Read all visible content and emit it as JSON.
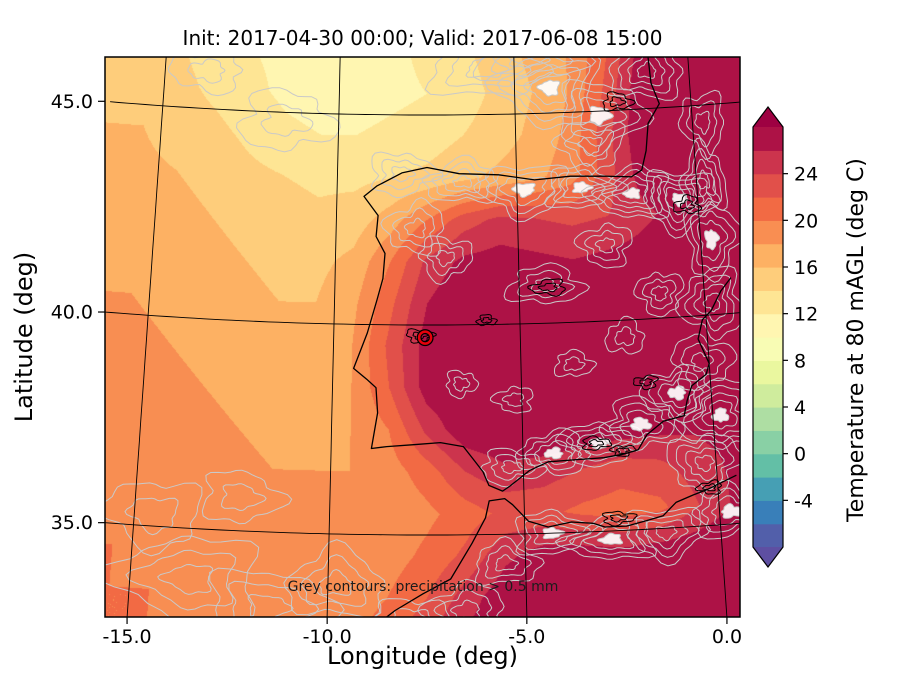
{
  "figure": {
    "title": "Init: 2017-04-30 00:00; Valid: 2017-06-08 15:00",
    "xlabel": "Longitude (deg)",
    "ylabel": "Latitude (deg)",
    "annotation": "Grey contours: precipitation > 0.5 mm",
    "colorbar_label": "Temperature at 80 mAGL (deg C)"
  },
  "chart_data": {
    "type": "heatmap",
    "title": "Init: 2017-04-30 00:00; Valid: 2017-06-08 15:00",
    "xlabel": "Longitude (deg)",
    "ylabel": "Latitude (deg)",
    "xlim": [
      -15.6,
      0.35
    ],
    "ylim": [
      32.7,
      46.3
    ],
    "grid": true,
    "xticks": {
      "values": [
        -15,
        -10,
        -5,
        0
      ],
      "labels": [
        "-15.0",
        "-10.0",
        "-5.0",
        "0.0"
      ]
    },
    "yticks": {
      "values": [
        35,
        40,
        45
      ],
      "labels": [
        "35.0",
        "40.0",
        "45.0"
      ]
    },
    "graticule": {
      "meridians": [
        -15,
        -10,
        -5,
        0
      ],
      "parallels": [
        35,
        40,
        45
      ]
    },
    "colorbar": {
      "label": "Temperature at 80 mAGL (deg C)",
      "units": "deg C",
      "vmin": -8,
      "vmax": 28,
      "band_step": 2,
      "extend": "both",
      "ticks": [
        -4,
        0,
        4,
        8,
        12,
        16,
        20,
        24
      ],
      "tick_labels": [
        "-4",
        "0",
        "4",
        "8",
        "12",
        "16",
        "20",
        "24"
      ],
      "colormap": [
        [
          -8,
          "#5E4FA2"
        ],
        [
          -4.4,
          "#3288BD"
        ],
        [
          -0.8,
          "#66C2A5"
        ],
        [
          2.8,
          "#ABDDA4"
        ],
        [
          6.4,
          "#E6F598"
        ],
        [
          10,
          "#FFFFBF"
        ],
        [
          13.6,
          "#FEE08B"
        ],
        [
          17.2,
          "#FDAE61"
        ],
        [
          20.8,
          "#F46D43"
        ],
        [
          24.4,
          "#D53E4F"
        ],
        [
          28,
          "#9E0142"
        ]
      ]
    },
    "field": {
      "comment": "Estimated 80 mAGL temperature (deg C) on lon/lat grid read from the filled contours",
      "lons": [
        -15.5,
        -14.5,
        -13.5,
        -12.5,
        -11.5,
        -10.5,
        -9.5,
        -8.5,
        -7.5,
        -6.5,
        -5.5,
        -4.5,
        -3.5,
        -2.5,
        -1.5,
        -0.5,
        0.5
      ],
      "lats": [
        46.5,
        45.5,
        44.5,
        43.5,
        42.5,
        41.5,
        40.5,
        39.5,
        38.5,
        37.5,
        36.5,
        35.5,
        34.5,
        33.5,
        32.5
      ],
      "values": [
        [
          15,
          14,
          13,
          12,
          11.5,
          11,
          11,
          11.5,
          12.5,
          13.5,
          15,
          16.5,
          18,
          21,
          26,
          28,
          28
        ],
        [
          15,
          14.5,
          13.5,
          12.5,
          11.5,
          11,
          11,
          11.5,
          12,
          13,
          14.5,
          16,
          18,
          22,
          27,
          28,
          28
        ],
        [
          16,
          15,
          14.5,
          13.5,
          12.5,
          12,
          12,
          12.5,
          13,
          14,
          15,
          16.5,
          18.5,
          23,
          27.5,
          28,
          28
        ],
        [
          16.5,
          16,
          15.5,
          14.5,
          14,
          13.5,
          13.5,
          14,
          14.5,
          15.5,
          16.5,
          17.5,
          19,
          23,
          27,
          28,
          28
        ],
        [
          17,
          16.5,
          16,
          15.5,
          15,
          14.5,
          15,
          17,
          20,
          23,
          24.5,
          24,
          23.5,
          24,
          25.5,
          27,
          27.5
        ],
        [
          17.5,
          17,
          16.5,
          16,
          15.5,
          15.5,
          16.5,
          20,
          24.5,
          26.5,
          27,
          26.5,
          26,
          26.5,
          27,
          27.5,
          27.5
        ],
        [
          18,
          17.5,
          17,
          16.5,
          16,
          16,
          17.5,
          21.5,
          26,
          28,
          28,
          27.5,
          27,
          27.5,
          28,
          28,
          27.5
        ],
        [
          18.5,
          18,
          17.5,
          17,
          16.5,
          16.5,
          18,
          22.5,
          27,
          28,
          28,
          28,
          27.5,
          27.5,
          28,
          28,
          27.5
        ],
        [
          18.5,
          18.5,
          18,
          17.5,
          17,
          17,
          18,
          22,
          27,
          28,
          28,
          28,
          28,
          28,
          28,
          27.5,
          27
        ],
        [
          19,
          19,
          18.5,
          18,
          17.5,
          17.5,
          18,
          20,
          24.5,
          27.5,
          28,
          28,
          28,
          27.5,
          27,
          26.5,
          27
        ],
        [
          19.5,
          19,
          19,
          18.5,
          18,
          18,
          18,
          19,
          21,
          24,
          25.5,
          25,
          24,
          23,
          23.5,
          25,
          26.5
        ],
        [
          19.5,
          19.5,
          19,
          19,
          18.5,
          18.5,
          18,
          18.5,
          19.5,
          21,
          22.5,
          22.5,
          21.5,
          21,
          21.5,
          24,
          26.5
        ],
        [
          20,
          19.5,
          19.5,
          19,
          19,
          18.5,
          18.5,
          19,
          20.5,
          22.5,
          25.5,
          27,
          27,
          26.5,
          27,
          27.5,
          28
        ],
        [
          20,
          20,
          19.5,
          19.5,
          19,
          19,
          19,
          20,
          22,
          25,
          27.5,
          28,
          28,
          28,
          28,
          28,
          28
        ],
        [
          20,
          20,
          20,
          19.5,
          19.5,
          19,
          19.5,
          21,
          24,
          26.5,
          28,
          28,
          28,
          28,
          28,
          28,
          28
        ]
      ]
    },
    "coastlines": [
      [
        [
          -1.15,
          46.35
        ],
        [
          -1.1,
          45.6
        ],
        [
          -0.9,
          45.1
        ],
        [
          -1.25,
          44.65
        ],
        [
          -1.35,
          44.0
        ],
        [
          -1.5,
          43.55
        ],
        [
          -1.8,
          43.4
        ],
        [
          -2.6,
          43.45
        ],
        [
          -3.5,
          43.48
        ],
        [
          -4.5,
          43.42
        ],
        [
          -5.5,
          43.56
        ],
        [
          -6.6,
          43.6
        ],
        [
          -7.5,
          43.75
        ],
        [
          -8.2,
          43.62
        ],
        [
          -8.9,
          43.3
        ],
        [
          -9.25,
          43.05
        ],
        [
          -8.85,
          42.6
        ],
        [
          -8.9,
          42.1
        ],
        [
          -8.65,
          41.7
        ],
        [
          -8.7,
          41.1
        ],
        [
          -8.85,
          40.6
        ],
        [
          -9.1,
          39.8
        ],
        [
          -9.45,
          38.95
        ],
        [
          -9.1,
          38.7
        ],
        [
          -8.85,
          38.5
        ],
        [
          -8.8,
          37.9
        ],
        [
          -8.95,
          37.05
        ],
        [
          -8.55,
          37.1
        ],
        [
          -7.85,
          37.15
        ],
        [
          -7.15,
          37.2
        ],
        [
          -6.55,
          37.1
        ],
        [
          -6.3,
          36.8
        ],
        [
          -6.05,
          36.5
        ],
        [
          -5.9,
          36.17
        ],
        [
          -5.55,
          36.03
        ],
        [
          -5.35,
          36.15
        ],
        [
          -4.85,
          36.5
        ],
        [
          -4.35,
          36.7
        ],
        [
          -3.6,
          36.73
        ],
        [
          -2.9,
          36.75
        ],
        [
          -2.35,
          36.82
        ],
        [
          -2.0,
          36.9
        ],
        [
          -1.75,
          37.25
        ],
        [
          -1.3,
          37.55
        ],
        [
          -0.75,
          37.65
        ],
        [
          -0.65,
          38.0
        ],
        [
          -0.5,
          38.35
        ],
        [
          -0.1,
          38.6
        ],
        [
          0.0,
          38.85
        ],
        [
          -0.25,
          39.45
        ],
        [
          -0.1,
          39.9
        ],
        [
          0.15,
          40.1
        ],
        [
          0.45,
          40.55
        ],
        [
          0.75,
          40.85
        ]
      ],
      [
        [
          -9.5,
          32.4
        ],
        [
          -8.9,
          32.75
        ],
        [
          -8.3,
          33.2
        ],
        [
          -7.6,
          33.6
        ],
        [
          -6.9,
          33.95
        ],
        [
          -6.35,
          34.8
        ],
        [
          -6.0,
          35.4
        ],
        [
          -5.9,
          35.8
        ],
        [
          -5.5,
          35.85
        ],
        [
          -5.3,
          35.7
        ],
        [
          -4.9,
          35.3
        ],
        [
          -4.4,
          35.15
        ],
        [
          -3.8,
          35.25
        ],
        [
          -3.25,
          35.2
        ],
        [
          -2.95,
          35.1
        ],
        [
          -2.4,
          35.1
        ],
        [
          -1.9,
          35.2
        ],
        [
          -1.45,
          35.3
        ],
        [
          -1.1,
          35.6
        ],
        [
          -0.65,
          35.75
        ],
        [
          -0.3,
          35.85
        ],
        [
          0.1,
          36.0
        ],
        [
          0.5,
          36.15
        ]
      ]
    ],
    "precip_contours": {
      "color": "#c9c9c9",
      "threshold": "> 0.5 mm",
      "clusters": [
        [
          -8.2,
          43.6,
          0.9,
          0.5,
          3,
          0
        ],
        [
          -6.5,
          43.4,
          1.0,
          0.5,
          4,
          0
        ],
        [
          -4.8,
          43.2,
          1.2,
          0.6,
          4,
          1
        ],
        [
          -3.2,
          43.2,
          1.0,
          0.5,
          4,
          1
        ],
        [
          -1.8,
          43.0,
          1.1,
          0.6,
          5,
          1
        ],
        [
          -0.5,
          42.8,
          1.0,
          0.7,
          5,
          1
        ],
        [
          -5.8,
          46.1,
          1.6,
          0.7,
          3,
          0
        ],
        [
          -4.0,
          45.6,
          1.4,
          0.9,
          5,
          1
        ],
        [
          -2.6,
          44.9,
          1.2,
          0.8,
          4,
          1
        ],
        [
          -1.2,
          45.9,
          1.0,
          0.7,
          4,
          0
        ],
        [
          -2.9,
          44.2,
          0.9,
          0.6,
          3,
          0
        ],
        [
          -4.6,
          46.3,
          1.5,
          0.6,
          3,
          0
        ],
        [
          -7.8,
          42.3,
          0.8,
          0.6,
          3,
          0
        ],
        [
          -7.0,
          41.6,
          0.7,
          0.5,
          3,
          0
        ],
        [
          -4.3,
          40.9,
          1.0,
          0.45,
          3,
          0
        ],
        [
          -2.6,
          41.8,
          0.7,
          0.5,
          3,
          0
        ],
        [
          -5.3,
          36.6,
          0.8,
          0.4,
          3,
          0
        ],
        [
          -4.2,
          36.9,
          0.9,
          0.5,
          4,
          1
        ],
        [
          -3.0,
          37.1,
          1.0,
          0.5,
          4,
          1
        ],
        [
          -1.9,
          37.5,
          1.0,
          0.6,
          4,
          1
        ],
        [
          -0.9,
          38.2,
          0.9,
          0.6,
          4,
          1
        ],
        [
          -0.2,
          38.9,
          0.8,
          0.6,
          3,
          0
        ],
        [
          0.2,
          37.6,
          1.0,
          0.8,
          5,
          1
        ],
        [
          -0.3,
          36.5,
          0.9,
          0.7,
          4,
          0
        ],
        [
          0.3,
          35.3,
          1.0,
          0.6,
          4,
          1
        ],
        [
          0.2,
          40.3,
          0.8,
          0.8,
          4,
          0
        ],
        [
          0.3,
          41.8,
          0.7,
          0.9,
          4,
          1
        ],
        [
          0.2,
          43.2,
          0.6,
          0.8,
          4,
          0
        ],
        [
          0.3,
          44.6,
          0.6,
          0.7,
          3,
          0
        ],
        [
          -4.3,
          35.0,
          1.0,
          0.5,
          4,
          1
        ],
        [
          -2.8,
          34.8,
          1.1,
          0.5,
          4,
          1
        ],
        [
          -1.4,
          34.9,
          1.0,
          0.6,
          4,
          0
        ],
        [
          -5.5,
          34.3,
          0.8,
          0.5,
          3,
          0
        ],
        [
          -13.5,
          33.8,
          1.8,
          1.0,
          3,
          0
        ],
        [
          -11.5,
          33.2,
          1.5,
          0.9,
          3,
          0
        ],
        [
          -9.8,
          33.8,
          1.2,
          0.8,
          3,
          0
        ],
        [
          -14.5,
          35.3,
          1.2,
          0.8,
          2,
          0
        ],
        [
          -12.3,
          35.8,
          1.0,
          0.6,
          2,
          0
        ],
        [
          -6.5,
          33.2,
          1.0,
          0.6,
          3,
          0
        ],
        [
          -7.9,
          33.0,
          0.9,
          0.5,
          2,
          0
        ],
        [
          -3.6,
          39.0,
          0.5,
          0.3,
          2,
          0
        ],
        [
          -5.2,
          38.2,
          0.5,
          0.3,
          2,
          0
        ],
        [
          -6.6,
          38.6,
          0.4,
          0.3,
          2,
          0
        ],
        [
          -2.2,
          39.6,
          0.5,
          0.4,
          2,
          0
        ],
        [
          -1.2,
          40.6,
          0.6,
          0.5,
          3,
          0
        ],
        [
          -11.5,
          44.8,
          1.3,
          0.7,
          2,
          0
        ],
        [
          -13.8,
          45.9,
          1.0,
          0.5,
          2,
          0
        ]
      ]
    },
    "black_contours": [
      [
        -7.7,
        39.75,
        0.35,
        0.15
      ],
      [
        -4.2,
        40.85,
        0.45,
        0.18
      ],
      [
        -3.1,
        37.1,
        0.35,
        0.15
      ],
      [
        -1.7,
        38.5,
        0.3,
        0.15
      ],
      [
        -5.9,
        40.1,
        0.25,
        0.12
      ],
      [
        -2.4,
        36.9,
        0.3,
        0.12
      ],
      [
        -0.3,
        42.65,
        0.35,
        0.2
      ],
      [
        -2.6,
        35.3,
        0.4,
        0.15
      ],
      [
        -0.2,
        35.9,
        0.3,
        0.15
      ],
      [
        -2.1,
        45.2,
        0.4,
        0.2
      ]
    ],
    "marker": {
      "lon": -7.55,
      "lat": 39.7,
      "face": "#e8000b",
      "edge": "#000000"
    },
    "annotation": "Grey contours: precipitation > 0.5 mm"
  }
}
